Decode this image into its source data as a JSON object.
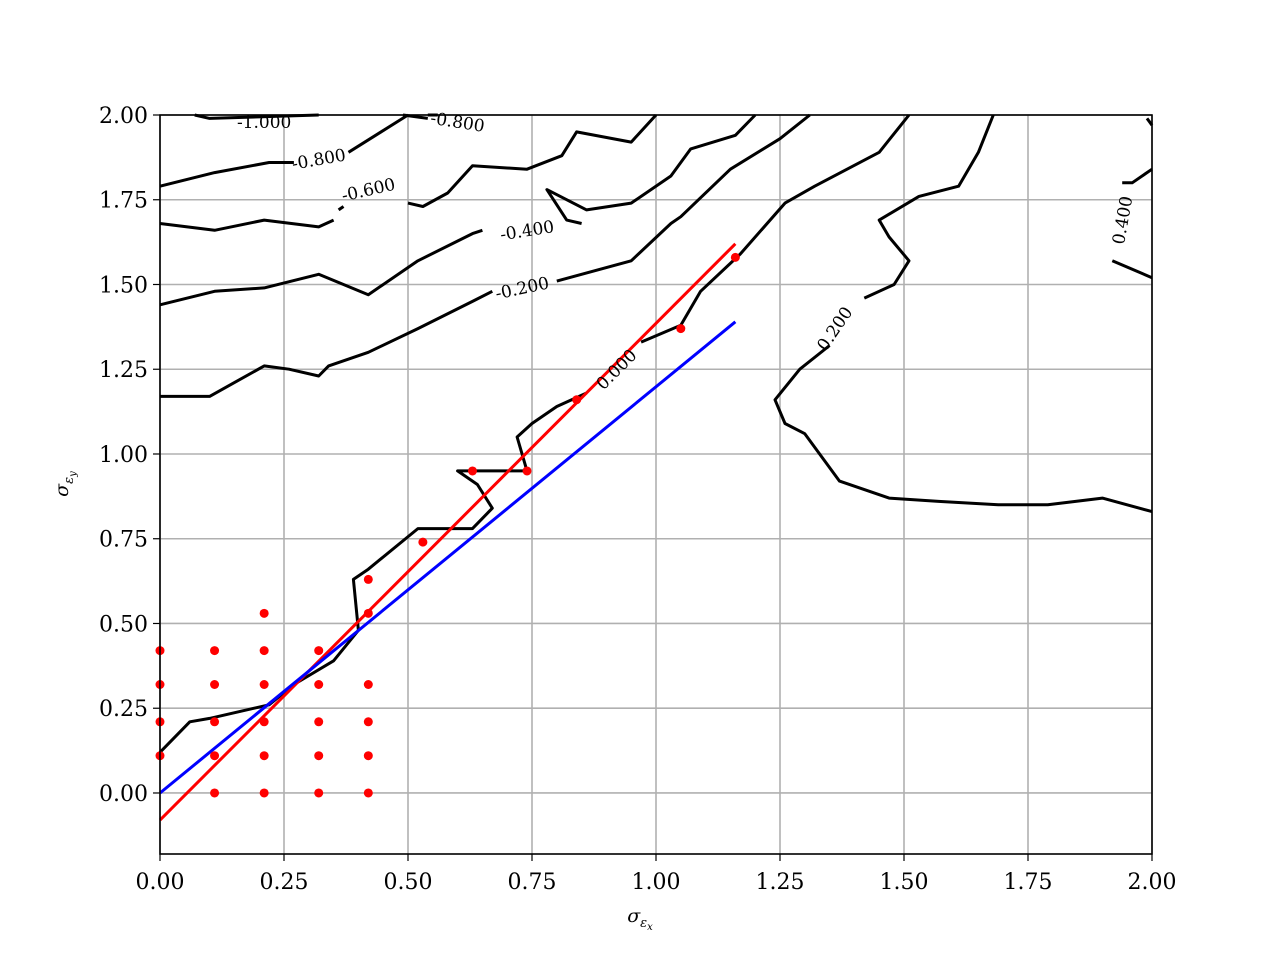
{
  "chart_data": {
    "type": "line",
    "title": "",
    "xlabel": {
      "symbol": "σ",
      "sub": "ε",
      "subsub": "x"
    },
    "ylabel": {
      "symbol": "σ",
      "sub": "ε",
      "subsub": "y"
    },
    "xlim": [
      0.0,
      2.0
    ],
    "ylim": [
      -0.18,
      2.0
    ],
    "xticks": [
      "0.00",
      "0.25",
      "0.50",
      "0.75",
      "1.00",
      "1.25",
      "1.50",
      "1.75",
      "2.00"
    ],
    "yticks": [
      "0.00",
      "0.25",
      "0.50",
      "0.75",
      "1.00",
      "1.25",
      "1.50",
      "1.75",
      "2.00"
    ],
    "grid": true,
    "colors": {
      "contour": "#000000",
      "fit_red": "#ff0000",
      "fit_blue": "#0000ff",
      "points": "#ff0000",
      "grid": "#b0b0b0"
    },
    "contours": [
      {
        "level": "-1.000",
        "points": [
          [
            0.07,
            2.0
          ],
          [
            0.1,
            1.99
          ],
          [
            0.32,
            2.0
          ]
        ]
      },
      {
        "level": "-0.800",
        "points": [
          [
            0.0,
            1.79
          ],
          [
            0.11,
            1.83
          ],
          [
            0.22,
            1.86
          ],
          [
            0.27,
            1.86
          ]
        ]
      },
      {
        "level": "-0.800",
        "points": [
          [
            0.38,
            1.89
          ],
          [
            0.5,
            2.0
          ]
        ]
      },
      {
        "level": "-0.800",
        "points": [
          [
            0.49,
            2.0
          ],
          [
            0.54,
            1.99
          ]
        ]
      },
      {
        "level": "-0.600",
        "points": [
          [
            0.0,
            1.68
          ],
          [
            0.11,
            1.66
          ],
          [
            0.21,
            1.69
          ],
          [
            0.32,
            1.67
          ],
          [
            0.35,
            1.69
          ]
        ]
      },
      {
        "level": "-0.600",
        "points": [
          [
            0.36,
            1.72
          ],
          [
            0.37,
            1.73
          ]
        ]
      },
      {
        "level": "-0.600",
        "points": [
          [
            0.5,
            1.74
          ],
          [
            0.53,
            1.73
          ],
          [
            0.58,
            1.77
          ],
          [
            0.63,
            1.85
          ],
          [
            0.74,
            1.84
          ],
          [
            0.81,
            1.88
          ],
          [
            0.84,
            1.95
          ],
          [
            0.95,
            1.92
          ],
          [
            1.0,
            2.0
          ]
        ]
      },
      {
        "level": "-0.600",
        "points": [
          [
            0.54,
            2.0
          ],
          [
            0.56,
            2.0
          ]
        ]
      },
      {
        "level": "-0.400",
        "points": [
          [
            0.0,
            1.44
          ],
          [
            0.11,
            1.48
          ],
          [
            0.21,
            1.49
          ],
          [
            0.32,
            1.53
          ],
          [
            0.42,
            1.47
          ],
          [
            0.52,
            1.57
          ],
          [
            0.63,
            1.65
          ],
          [
            0.65,
            1.66
          ]
        ]
      },
      {
        "level": "-0.400",
        "points": [
          [
            0.85,
            1.68
          ],
          [
            0.82,
            1.69
          ],
          [
            0.78,
            1.78
          ],
          [
            0.86,
            1.72
          ],
          [
            0.95,
            1.74
          ],
          [
            1.03,
            1.82
          ],
          [
            1.07,
            1.9
          ],
          [
            1.16,
            1.94
          ],
          [
            1.2,
            2.0
          ]
        ]
      },
      {
        "level": "-0.200",
        "points": [
          [
            0.0,
            1.17
          ],
          [
            0.1,
            1.17
          ],
          [
            0.21,
            1.26
          ],
          [
            0.26,
            1.25
          ],
          [
            0.32,
            1.23
          ],
          [
            0.34,
            1.26
          ],
          [
            0.42,
            1.3
          ],
          [
            0.52,
            1.37
          ],
          [
            0.63,
            1.45
          ],
          [
            0.67,
            1.48
          ]
        ]
      },
      {
        "level": "-0.200",
        "points": [
          [
            0.8,
            1.51
          ],
          [
            0.95,
            1.57
          ],
          [
            1.03,
            1.68
          ],
          [
            1.05,
            1.7
          ],
          [
            1.15,
            1.84
          ],
          [
            1.25,
            1.93
          ],
          [
            1.31,
            2.0
          ]
        ]
      },
      {
        "level": "0.000",
        "points": [
          [
            0.0,
            0.12
          ],
          [
            0.06,
            0.21
          ],
          [
            0.1,
            0.22
          ],
          [
            0.22,
            0.26
          ],
          [
            0.27,
            0.32
          ],
          [
            0.35,
            0.39
          ],
          [
            0.4,
            0.48
          ],
          [
            0.39,
            0.63
          ],
          [
            0.42,
            0.66
          ],
          [
            0.52,
            0.78
          ],
          [
            0.63,
            0.78
          ],
          [
            0.67,
            0.84
          ],
          [
            0.64,
            0.91
          ],
          [
            0.6,
            0.95
          ],
          [
            0.74,
            0.95
          ],
          [
            0.72,
            1.05
          ],
          [
            0.75,
            1.09
          ],
          [
            0.8,
            1.14
          ],
          [
            0.86,
            1.18
          ]
        ]
      },
      {
        "level": "0.000",
        "points": [
          [
            0.97,
            1.33
          ],
          [
            1.05,
            1.38
          ],
          [
            1.09,
            1.48
          ],
          [
            1.17,
            1.59
          ],
          [
            1.26,
            1.74
          ],
          [
            1.32,
            1.79
          ],
          [
            1.45,
            1.89
          ],
          [
            1.51,
            2.0
          ]
        ]
      },
      {
        "level": "0.200",
        "points": [
          [
            1.35,
            1.32
          ],
          [
            1.29,
            1.25
          ],
          [
            1.24,
            1.16
          ],
          [
            1.26,
            1.09
          ],
          [
            1.3,
            1.06
          ],
          [
            1.37,
            0.92
          ],
          [
            1.47,
            0.87
          ],
          [
            1.57,
            0.86
          ],
          [
            1.69,
            0.85
          ],
          [
            1.79,
            0.85
          ],
          [
            1.9,
            0.87
          ],
          [
            2.0,
            0.83
          ]
        ]
      },
      {
        "level": "0.200",
        "points": [
          [
            1.42,
            1.46
          ],
          [
            1.48,
            1.5
          ],
          [
            1.51,
            1.57
          ],
          [
            1.47,
            1.64
          ],
          [
            1.45,
            1.69
          ],
          [
            1.53,
            1.76
          ],
          [
            1.61,
            1.79
          ],
          [
            1.65,
            1.89
          ],
          [
            1.68,
            2.0
          ]
        ]
      },
      {
        "level": "0.400",
        "points": [
          [
            1.92,
            1.57
          ],
          [
            2.0,
            1.52
          ]
        ]
      },
      {
        "level": "0.400",
        "points": [
          [
            1.94,
            1.8
          ],
          [
            1.96,
            1.8
          ],
          [
            2.0,
            1.84
          ]
        ]
      },
      {
        "level": "0.400",
        "points": [
          [
            1.99,
            1.99
          ],
          [
            2.0,
            1.97
          ]
        ]
      }
    ],
    "contour_labels": [
      {
        "text": "-1.000",
        "x": 0.21,
        "y": 1.98,
        "angle": 0
      },
      {
        "text": "-0.800",
        "x": 0.32,
        "y": 1.87,
        "angle": -10
      },
      {
        "text": "-0.800",
        "x": 0.6,
        "y": 1.98,
        "angle": 9
      },
      {
        "text": "-0.600",
        "x": 0.42,
        "y": 1.78,
        "angle": -13
      },
      {
        "text": "-0.400",
        "x": 0.74,
        "y": 1.66,
        "angle": -9
      },
      {
        "text": "-0.200",
        "x": 0.73,
        "y": 1.49,
        "angle": -12
      },
      {
        "text": "0.000",
        "x": 0.92,
        "y": 1.25,
        "angle": -45
      },
      {
        "text": "0.200",
        "x": 1.36,
        "y": 1.37,
        "angle": -56
      },
      {
        "text": "0.400",
        "x": 1.94,
        "y": 1.69,
        "angle": -80
      }
    ],
    "fit_lines": [
      {
        "color": "#ff0000",
        "x": [
          0.0,
          1.16
        ],
        "y": [
          -0.08,
          1.62
        ]
      },
      {
        "color": "#0000ff",
        "x": [
          0.0,
          1.16
        ],
        "y": [
          0.0,
          1.39
        ]
      }
    ],
    "scatter": {
      "x": [
        0.0,
        0.0,
        0.0,
        0.0,
        0.11,
        0.11,
        0.11,
        0.11,
        0.11,
        0.21,
        0.21,
        0.21,
        0.21,
        0.21,
        0.21,
        0.32,
        0.32,
        0.32,
        0.32,
        0.32,
        0.42,
        0.42,
        0.42,
        0.42,
        0.42,
        0.42,
        0.53,
        0.63,
        0.74,
        0.84,
        1.05,
        1.16
      ],
      "y": [
        0.42,
        0.32,
        0.21,
        0.11,
        0.42,
        0.32,
        0.21,
        0.11,
        0.0,
        0.53,
        0.42,
        0.32,
        0.21,
        0.11,
        0.0,
        0.42,
        0.32,
        0.21,
        0.11,
        0.0,
        0.63,
        0.53,
        0.32,
        0.21,
        0.11,
        0.0,
        0.74,
        0.95,
        0.95,
        1.16,
        1.37,
        1.58
      ]
    }
  }
}
